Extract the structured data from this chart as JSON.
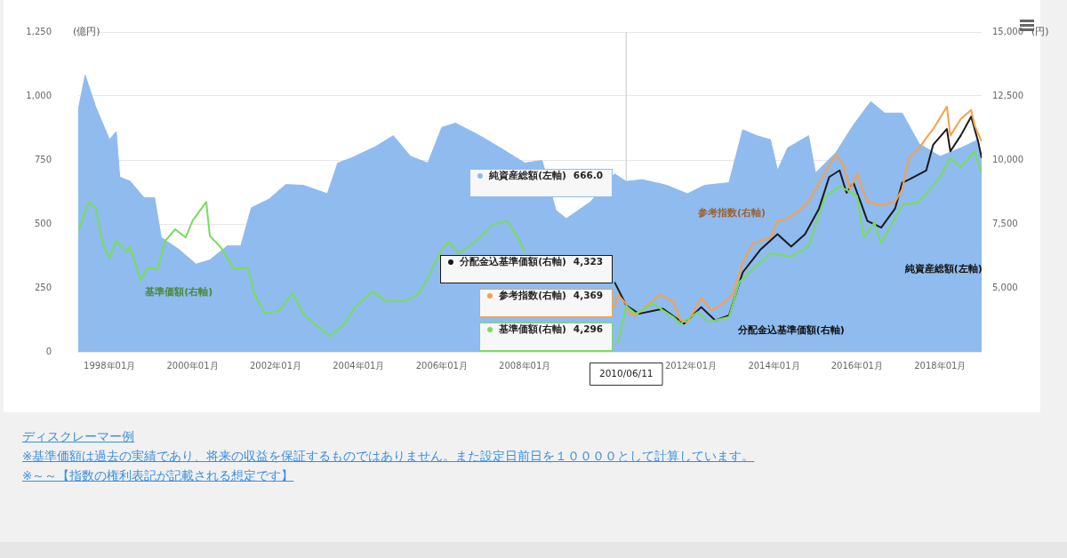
{
  "chart_data": {
    "type": "area",
    "ylabel": "(億円)",
    "y2label": "(円)",
    "xlim": [
      "1997-04",
      "2019-01"
    ],
    "xticks": [
      {
        "value": "1998-01",
        "label": "1998年01月"
      },
      {
        "value": "2000-01",
        "label": "2000年01月"
      },
      {
        "value": "2002-01",
        "label": "2002年01月"
      },
      {
        "value": "2004-01",
        "label": "2004年01月"
      },
      {
        "value": "2006-01",
        "label": "2006年01月"
      },
      {
        "value": "2008-01",
        "label": "2008年01月"
      },
      {
        "value": "2012-01",
        "label": "2012年01月"
      },
      {
        "value": "2014-01",
        "label": "2014年01月"
      },
      {
        "value": "2016-01",
        "label": "2016年01月"
      },
      {
        "value": "2018-01",
        "label": "2018年01月"
      }
    ],
    "ylim": [
      0,
      1250
    ],
    "yticks": [
      0,
      250,
      500,
      750,
      {
        "value": 1000,
        "label": "1,000"
      },
      {
        "value": 1250,
        "label": "1,250"
      }
    ],
    "y2lim": [
      2500,
      15000
    ],
    "y2ticks": [
      {
        "value": 5000,
        "label": "5,000"
      },
      {
        "value": 7500,
        "label": "7,500"
      },
      {
        "value": 10000,
        "label": "10,000"
      },
      {
        "value": 12500,
        "label": "12,500"
      },
      {
        "value": 15000,
        "label": "15,000"
      }
    ],
    "grid": "y",
    "legend": "center",
    "series": [
      {
        "name": "純資産総額(左軸)",
        "type": "area",
        "color": "#8fbbee",
        "x": [
          "1997-04",
          "1997-06",
          "1997-09",
          "1998-01",
          "1998-03",
          "1998-04",
          "1998-07",
          "1998-11",
          "1999-02",
          "1999-04",
          "1999-09",
          "2000-02",
          "2000-06",
          "2000-11",
          "2001-03",
          "2001-06",
          "2001-11",
          "2002-04",
          "2002-09",
          "2003-04",
          "2003-07",
          "2003-11",
          "2004-06",
          "2004-11",
          "2005-04",
          "2005-09",
          "2006-01",
          "2006-05",
          "2006-12",
          "2007-06",
          "2008-01",
          "2008-06",
          "2008-10",
          "2009-01",
          "2009-08",
          "2010-03",
          "2010-06-11",
          "2010-11",
          "2011-06",
          "2011-12",
          "2012-05",
          "2012-12",
          "2013-04",
          "2013-08",
          "2013-12",
          "2014-02",
          "2014-05",
          "2014-11",
          "2015-01",
          "2015-07",
          "2015-12",
          "2016-05",
          "2016-09",
          "2017-02",
          "2017-07",
          "2018-01",
          "2018-07",
          "2018-12",
          "2019-01"
        ],
        "values": [
          946,
          1081,
          958,
          829,
          861,
          683,
          667,
          602,
          602,
          447,
          401,
          343,
          359,
          414,
          414,
          563,
          596,
          654,
          651,
          618,
          738,
          758,
          803,
          845,
          764,
          738,
          877,
          894,
          845,
          797,
          738,
          748,
          553,
          521,
          586,
          696,
          666,
          673,
          651,
          618,
          651,
          661,
          868,
          845,
          829,
          709,
          797,
          845,
          699,
          780,
          887,
          978,
          933,
          933,
          813,
          764,
          797,
          829,
          748
        ]
      },
      {
        "name": "分配金込基準価額(右軸)",
        "type": "line",
        "axis": "y2",
        "color": "#1a1a1a",
        "x": [
          "2010-03",
          "2010-06-11",
          "2010-10",
          "2011-05",
          "2011-11",
          "2012-04",
          "2012-08",
          "2012-12",
          "2013-04",
          "2013-09",
          "2014-02",
          "2014-06",
          "2014-10",
          "2015-02",
          "2015-05",
          "2015-08",
          "2015-10",
          "2015-12",
          "2016-02",
          "2016-04",
          "2016-08",
          "2016-12",
          "2017-02",
          "2017-04",
          "2017-09",
          "2017-11",
          "2018-03",
          "2018-04",
          "2018-07",
          "2018-10",
          "2018-12",
          "2019-01"
        ],
        "values": [
          5220,
          4323,
          3989,
          4184,
          3601,
          4249,
          3730,
          3925,
          5608,
          6483,
          7098,
          6612,
          7098,
          8102,
          9332,
          9591,
          8717,
          9106,
          8361,
          7616,
          7357,
          8102,
          9106,
          9235,
          9591,
          10595,
          11210,
          10336,
          10951,
          11696,
          10724,
          10077
        ]
      },
      {
        "name": "参考指数(右軸)",
        "type": "line",
        "axis": "y2",
        "color": "#f7a04a",
        "x": [
          "2010-03",
          "2010-04",
          "2010-06-11",
          "2010-07",
          "2010-09",
          "2011-04",
          "2011-08",
          "2011-10",
          "2011-12",
          "2012-04",
          "2012-07",
          "2012-11",
          "2013-01",
          "2013-04",
          "2013-07",
          "2013-12",
          "2014-02",
          "2014-05",
          "2014-08",
          "2014-11",
          "2015-03",
          "2015-07",
          "2015-09",
          "2015-11",
          "2016-01",
          "2016-04",
          "2016-08",
          "2016-12",
          "2017-02",
          "2017-04",
          "2017-07",
          "2017-09",
          "2017-11",
          "2018-03",
          "2018-04",
          "2018-07",
          "2018-10",
          "2018-11",
          "2019-01"
        ],
        "values": [
          4249,
          4734,
          4369,
          3989,
          3925,
          4734,
          4475,
          3730,
          3666,
          4605,
          4119,
          4475,
          4734,
          5997,
          6742,
          6968,
          7616,
          7713,
          7972,
          8361,
          9332,
          10206,
          9850,
          8846,
          9462,
          8361,
          8231,
          8361,
          8846,
          10077,
          10465,
          10854,
          11210,
          12084,
          10951,
          11599,
          11955,
          11340,
          10724
        ]
      },
      {
        "name": "基準価額(右軸)",
        "type": "line",
        "axis": "y2",
        "color": "#79dc5a",
        "x": [
          "1997-04",
          "1997-07",
          "1997-09",
          "1997-11",
          "1998-01",
          "1998-03",
          "1998-06",
          "1998-07",
          "1998-10",
          "1998-12",
          "1999-03",
          "1999-05",
          "1999-08",
          "1999-11",
          "2000-01",
          "2000-05",
          "2000-06",
          "2000-09",
          "2001-01",
          "2001-05",
          "2001-07",
          "2001-10",
          "2002-02",
          "2002-06",
          "2002-09",
          "2003-01",
          "2003-05",
          "2003-09",
          "2003-12",
          "2004-05",
          "2004-09",
          "2005-02",
          "2005-06",
          "2005-08",
          "2006-01",
          "2006-03",
          "2006-06",
          "2006-11",
          "2007-04",
          "2007-08",
          "2007-11",
          "2008-01",
          "2009-01",
          "2010-04",
          "2010-06-11",
          "2010-09",
          "2011-02",
          "2011-05",
          "2011-08",
          "2011-10",
          "2012-03",
          "2012-06",
          "2012-12",
          "2013-03",
          "2013-07",
          "2013-12",
          "2014-06",
          "2014-11",
          "2015-01",
          "2015-04",
          "2015-08",
          "2016-01",
          "2016-03",
          "2016-06",
          "2016-08",
          "2017-02",
          "2017-07",
          "2018-01",
          "2018-04",
          "2018-07",
          "2018-11",
          "2019-01"
        ],
        "values": [
          7227,
          8328,
          8134,
          6742,
          6159,
          6839,
          6418,
          6612,
          5285,
          5770,
          5738,
          6807,
          7292,
          6968,
          7616,
          8361,
          7033,
          6612,
          5738,
          5803,
          4734,
          3989,
          4119,
          4799,
          3989,
          3504,
          3115,
          3601,
          4249,
          4864,
          4475,
          4475,
          4734,
          5123,
          6483,
          6807,
          6353,
          6839,
          7487,
          7616,
          6968,
          6418,
          null,
          2856,
          4296,
          3989,
          4378,
          4119,
          3860,
          3601,
          4054,
          3666,
          3860,
          5220,
          5738,
          6353,
          6224,
          6612,
          7487,
          8587,
          8976,
          8587,
          6968,
          7551,
          6742,
          8231,
          8361,
          9332,
          10077,
          9721,
          10336,
          9462
        ]
      }
    ],
    "ref_lines": [
      {
        "axis": "x",
        "value": "2010-06-11",
        "label": "2010/06/11",
        "color": "#c8c8c8"
      }
    ],
    "annotations": [
      {
        "text": "666.0",
        "x": "2010-06-11"
      },
      {
        "text": "4,323",
        "x": "2010-06-11"
      },
      {
        "text": "4,369",
        "x": "2010-06-11"
      },
      {
        "text": "4,296",
        "x": "2010-06-11"
      },
      "ディスクレーマー例",
      "※基準価額は過去の実績であり、将来の収益を保証するものではありません。また設定日前日を１００００として計算しています。",
      "※～～【指数の権利表記が記載される想定です】"
    ]
  }
}
